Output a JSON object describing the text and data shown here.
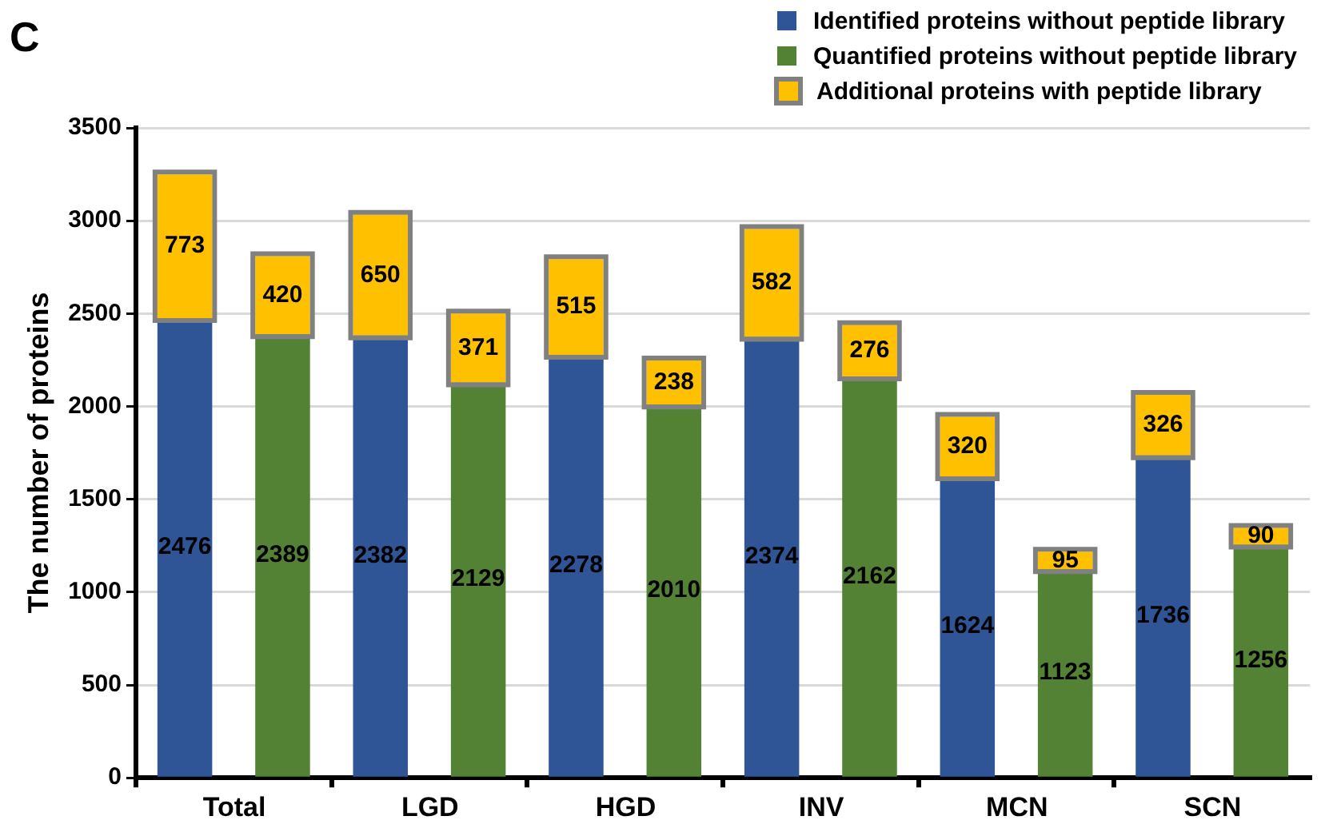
{
  "chart_data": {
    "type": "bar",
    "title": "C",
    "ylabel": "The number of proteins",
    "stacked": true,
    "categories": [
      "Total",
      null,
      "LGD",
      null,
      "HGD",
      null,
      "INV",
      null,
      "MCN",
      null,
      "SCN",
      null
    ],
    "series": [
      {
        "name": "Identified proteins without peptide library",
        "color": "#2f5597",
        "values": [
          2476,
          null,
          2382,
          null,
          2278,
          null,
          2374,
          null,
          1624,
          null,
          1736,
          null
        ]
      },
      {
        "name": "Quantified proteins without peptide library",
        "color": "#548235",
        "values": [
          null,
          2389,
          null,
          2129,
          null,
          2010,
          null,
          2162,
          null,
          1123,
          null,
          1256
        ]
      },
      {
        "name": "Additional proteins with peptide library",
        "color": "#ffc000",
        "values": [
          773,
          420,
          650,
          371,
          515,
          238,
          582,
          276,
          320,
          95,
          326,
          90
        ]
      }
    ],
    "ylim": [
      0,
      3500
    ],
    "yticks": [
      0,
      500,
      1000,
      1500,
      2000,
      2500,
      3000,
      3500
    ],
    "grid": "y",
    "legend": "top right",
    "data_labels": true
  }
}
